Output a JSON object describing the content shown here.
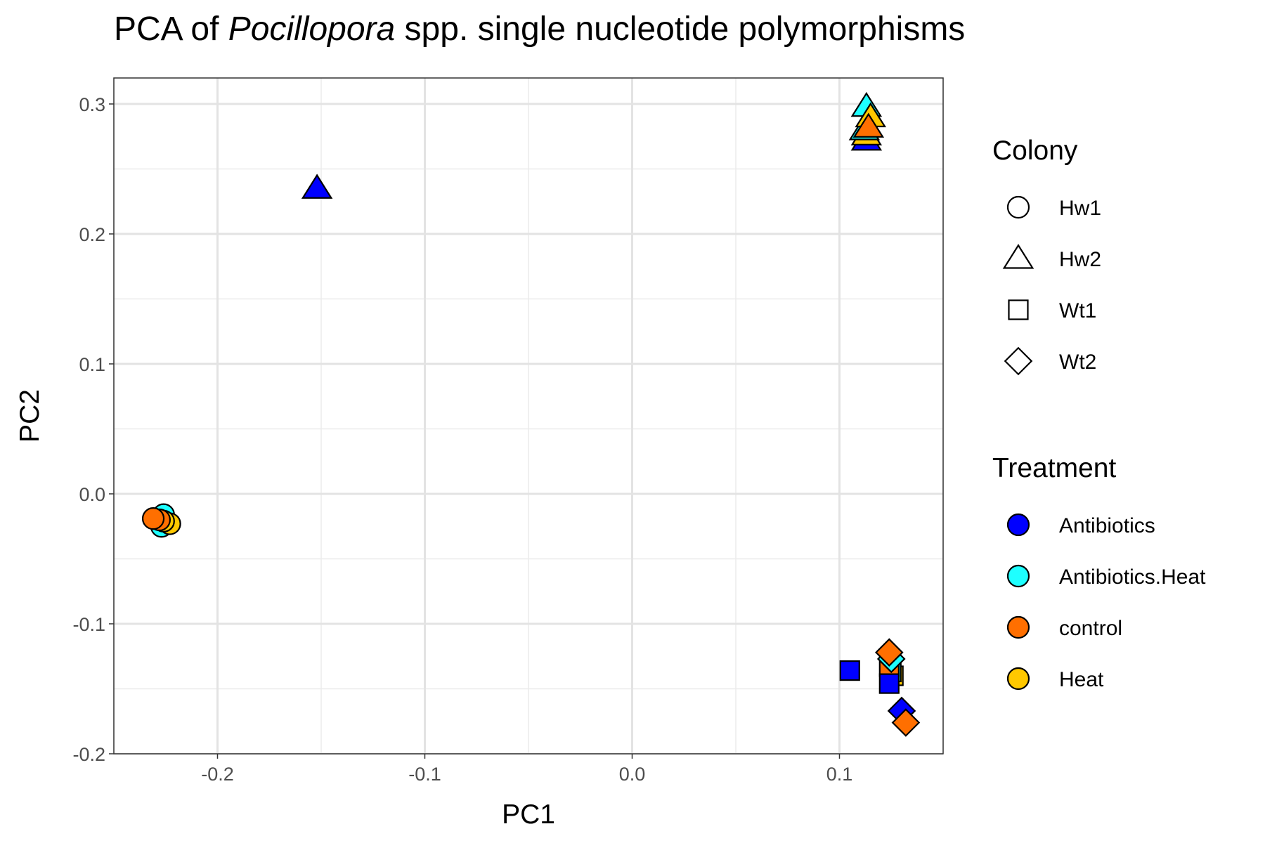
{
  "chart_data": {
    "type": "scatter",
    "title": {
      "prefix": "PCA of ",
      "italic": "Pocillopora",
      "suffix": " spp. single nucleotide polymorphisms"
    },
    "xlabel": "PC1",
    "ylabel": "PC2",
    "xlim": [
      -0.25,
      0.15
    ],
    "ylim": [
      -0.2,
      0.32
    ],
    "x_ticks": [
      -0.2,
      -0.1,
      0.0,
      0.1
    ],
    "x_tick_labels": [
      "-0.2",
      "-0.1",
      "0.0",
      "0.1"
    ],
    "y_ticks": [
      -0.2,
      -0.1,
      0.0,
      0.1,
      0.2,
      0.3
    ],
    "y_tick_labels": [
      "-0.2",
      "-0.1",
      "0.0",
      "0.1",
      "0.2",
      "0.3"
    ],
    "grid": true,
    "legend_position": "right",
    "legends": [
      {
        "title": "Colony",
        "kind": "shape",
        "entries": [
          {
            "label": "Hw1",
            "shape": "circle"
          },
          {
            "label": "Hw2",
            "shape": "triangle"
          },
          {
            "label": "Wt1",
            "shape": "square"
          },
          {
            "label": "Wt2",
            "shape": "diamond"
          }
        ]
      },
      {
        "title": "Treatment",
        "kind": "fill",
        "entries": [
          {
            "label": "Antibiotics",
            "color": "#0000FF"
          },
          {
            "label": "Antibiotics.Heat",
            "color": "#1EFFFF"
          },
          {
            "label": "control",
            "color": "#FF6F00"
          },
          {
            "label": "Heat",
            "color": "#FFC800"
          }
        ]
      }
    ],
    "points": [
      {
        "colony": "Hw1",
        "treatment": "Antibiotics",
        "x": -0.228,
        "y": -0.022
      },
      {
        "colony": "Hw1",
        "treatment": "Antibiotics.Heat",
        "x": -0.227,
        "y": -0.025
      },
      {
        "colony": "Hw1",
        "treatment": "Antibiotics.Heat",
        "x": -0.226,
        "y": -0.016
      },
      {
        "colony": "Hw1",
        "treatment": "Heat",
        "x": -0.223,
        "y": -0.023
      },
      {
        "colony": "Hw1",
        "treatment": "Heat",
        "x": -0.226,
        "y": -0.021
      },
      {
        "colony": "Hw1",
        "treatment": "control",
        "x": -0.228,
        "y": -0.02
      },
      {
        "colony": "Hw1",
        "treatment": "control",
        "x": -0.231,
        "y": -0.019
      },
      {
        "colony": "Hw2",
        "treatment": "Antibiotics",
        "x": -0.152,
        "y": 0.235
      },
      {
        "colony": "Hw2",
        "treatment": "Antibiotics",
        "x": 0.113,
        "y": 0.272
      },
      {
        "colony": "Hw2",
        "treatment": "Heat",
        "x": 0.113,
        "y": 0.276
      },
      {
        "colony": "Hw2",
        "treatment": "Antibiotics.Heat",
        "x": 0.112,
        "y": 0.28
      },
      {
        "colony": "Hw2",
        "treatment": "Antibiotics.Heat",
        "x": 0.113,
        "y": 0.298
      },
      {
        "colony": "Hw2",
        "treatment": "Heat",
        "x": 0.115,
        "y": 0.29
      },
      {
        "colony": "Hw2",
        "treatment": "control",
        "x": 0.114,
        "y": 0.282
      },
      {
        "colony": "Wt1",
        "treatment": "Antibiotics",
        "x": 0.105,
        "y": -0.136
      },
      {
        "colony": "Wt1",
        "treatment": "Heat",
        "x": 0.126,
        "y": -0.14
      },
      {
        "colony": "Wt1",
        "treatment": "Antibiotics.Heat",
        "x": 0.125,
        "y": -0.137
      },
      {
        "colony": "Wt1",
        "treatment": "control",
        "x": 0.124,
        "y": -0.133
      },
      {
        "colony": "Wt1",
        "treatment": "Antibiotics",
        "x": 0.124,
        "y": -0.146
      },
      {
        "colony": "Wt2",
        "treatment": "Antibiotics.Heat",
        "x": 0.125,
        "y": -0.127
      },
      {
        "colony": "Wt2",
        "treatment": "control",
        "x": 0.124,
        "y": -0.122
      },
      {
        "colony": "Wt2",
        "treatment": "Antibiotics",
        "x": 0.13,
        "y": -0.167
      },
      {
        "colony": "Wt2",
        "treatment": "control",
        "x": 0.132,
        "y": -0.176
      }
    ]
  }
}
